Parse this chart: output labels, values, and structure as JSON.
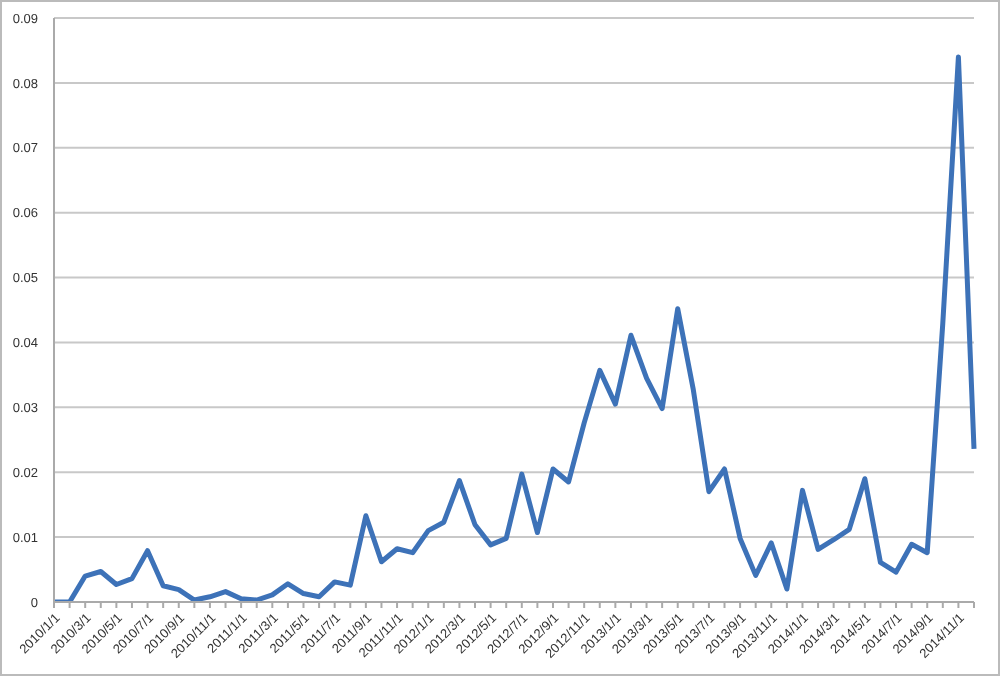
{
  "chart_data": {
    "type": "line",
    "categories": [
      "2010/1/1",
      null,
      "2010/3/1",
      null,
      "2010/5/1",
      null,
      "2010/7/1",
      null,
      "2010/9/1",
      null,
      "2010/11/1",
      null,
      "2011/1/1",
      null,
      "2011/3/1",
      null,
      "2011/5/1",
      null,
      "2011/7/1",
      null,
      "2011/9/1",
      null,
      "2011/11/1",
      null,
      "2012/1/1",
      null,
      "2012/3/1",
      null,
      "2012/5/1",
      null,
      "2012/7/1",
      null,
      "2012/9/1",
      null,
      "2012/11/1",
      null,
      "2013/1/1",
      null,
      "2013/3/1",
      null,
      "2013/5/1",
      null,
      "2013/7/1",
      null,
      "2013/9/1",
      null,
      "2013/11/1",
      null,
      "2014/1/1",
      null,
      "2014/3/1",
      null,
      "2014/5/1",
      null,
      "2014/7/1",
      null,
      "2014/9/1",
      null,
      "2014/11/1",
      null
    ],
    "values": [
      0,
      0,
      0.004,
      0.0047,
      0.0027,
      0.0036,
      0.0079,
      0.0025,
      0.0019,
      0.0003,
      0.0008,
      0.0016,
      0.0005,
      0.0003,
      0.0011,
      0.0028,
      0.0013,
      0.0008,
      0.0031,
      0.0026,
      0.0133,
      0.0062,
      0.0082,
      0.0076,
      0.011,
      0.0123,
      0.0187,
      0.0119,
      0.0088,
      0.0098,
      0.0197,
      0.0107,
      0.0205,
      0.0185,
      0.0276,
      0.0357,
      0.0305,
      0.0411,
      0.0345,
      0.0298,
      0.0452,
      0.0327,
      0.017,
      0.0205,
      0.0098,
      0.0041,
      0.0091,
      0.002,
      0.0172,
      0.0081,
      0.0096,
      0.0112,
      0.019,
      0.0061,
      0.0046,
      0.0089,
      0.0076,
      0.043,
      0.084,
      0.0236
    ],
    "color": "#3d72b8",
    "ylim": [
      0,
      0.09
    ],
    "yticks": [
      0,
      0.01,
      0.02,
      0.03,
      0.04,
      0.05,
      0.06,
      0.07,
      0.08,
      0.09
    ],
    "grid": "y",
    "marker": "none",
    "line_style": "solid"
  }
}
